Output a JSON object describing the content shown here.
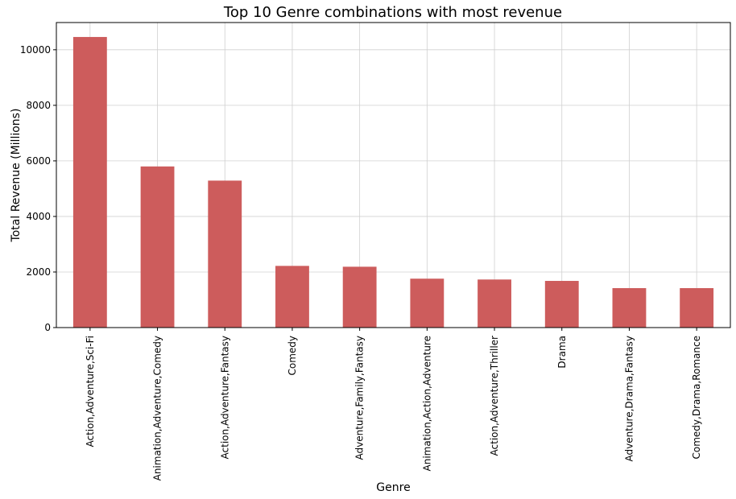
{
  "chart_data": {
    "type": "bar",
    "title": "Top 10 Genre combinations with most revenue",
    "xlabel": "Genre",
    "ylabel": "Total Revenue (Millions)",
    "categories": [
      "Action,Adventure,Sci-Fi",
      "Animation,Adventure,Comedy",
      "Action,Adventure,Fantasy",
      "Comedy",
      "Adventure,Family,Fantasy",
      "Animation,Action,Adventure",
      "Action,Adventure,Thriller",
      "Drama",
      "Adventure,Drama,Fantasy",
      "Comedy,Drama,Romance"
    ],
    "values": [
      10460,
      5800,
      5290,
      2220,
      2190,
      1760,
      1730,
      1680,
      1420,
      1420
    ],
    "ylim": [
      0,
      10980
    ],
    "yticks": [
      0,
      2000,
      4000,
      6000,
      8000,
      10000
    ],
    "grid": true,
    "legend": "none",
    "bar_color": "#cd5c5c"
  }
}
